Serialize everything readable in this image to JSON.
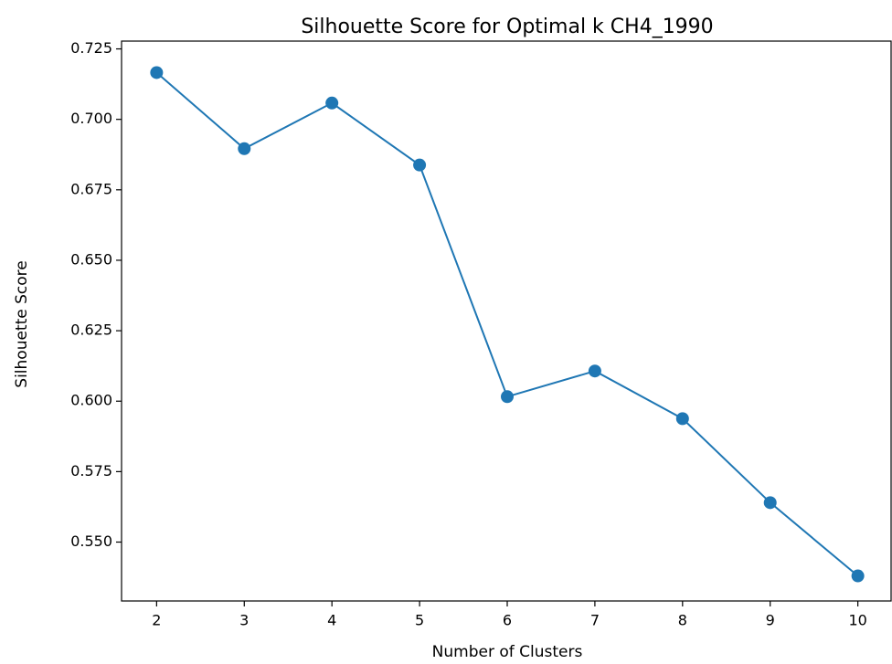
{
  "chart_data": {
    "type": "line",
    "title": "Silhouette Score for Optimal k CH4_1990",
    "xlabel": "Number of Clusters",
    "ylabel": "Silhouette Score",
    "x": [
      2,
      3,
      4,
      5,
      6,
      7,
      8,
      9,
      10
    ],
    "series": [
      {
        "name": "Silhouette Score",
        "color": "#1f77b4",
        "values": [
          0.7166,
          0.6896,
          0.7058,
          0.6838,
          0.6016,
          0.6107,
          0.5938,
          0.564,
          0.538
        ]
      }
    ],
    "xlim": [
      1.6,
      10.4
    ],
    "xticks": [
      2,
      3,
      4,
      5,
      6,
      7,
      8,
      9,
      10
    ],
    "ylim": [
      0.5291,
      0.7255
    ],
    "yticks": [
      {
        "value": 0.55,
        "label": "0.550"
      },
      0.575,
      {
        "value": 0.6,
        "label": "0.600"
      },
      0.625,
      {
        "value": 0.65,
        "label": "0.650"
      },
      0.675,
      {
        "value": 0.7,
        "label": "0.700"
      },
      0.725
    ],
    "grid": false
  }
}
